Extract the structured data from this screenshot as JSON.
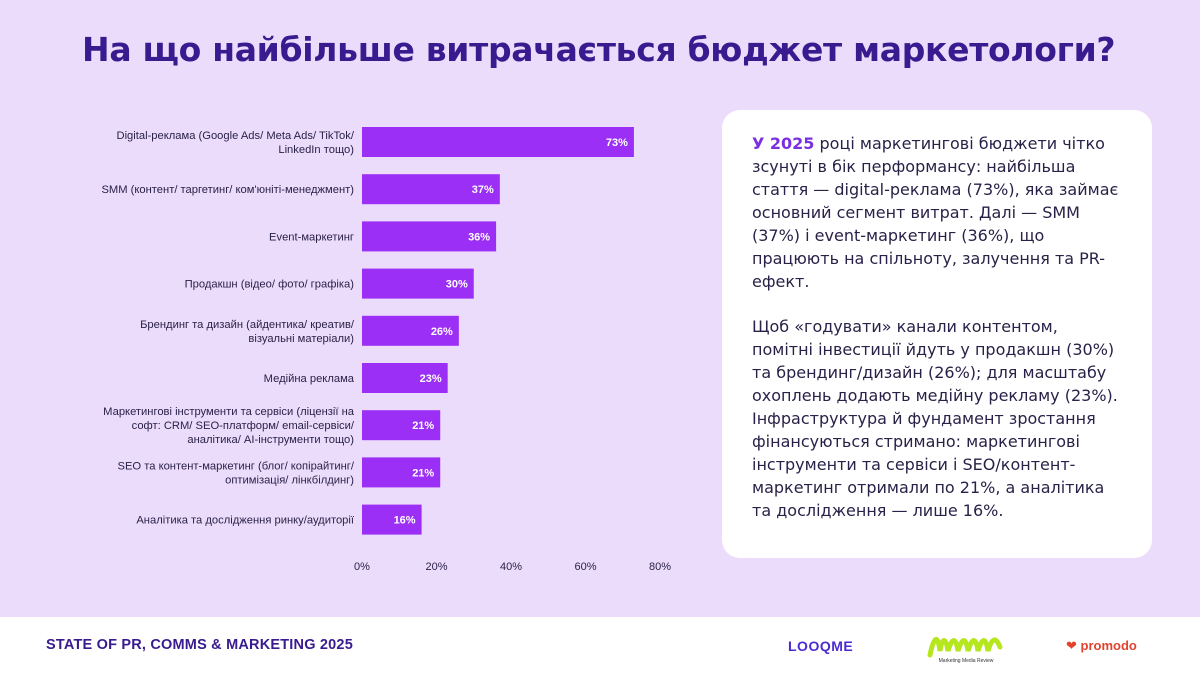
{
  "header": {
    "title": "На що найбільше витрачається бюджет маркетологи?"
  },
  "chart_data": {
    "type": "bar",
    "orientation": "horizontal",
    "categories": [
      [
        "Digital-реклама (Google Ads/ Meta Ads/ TikTok/",
        "LinkedIn тощо)"
      ],
      [
        "SMM (контент/ таргетинг/ ком'юніті-менеджмент)"
      ],
      [
        "Event-маркетинг"
      ],
      [
        "Продакшн (відео/ фото/ графіка)"
      ],
      [
        "Брендинг та дизайн (айдентика/ креатив/",
        "візуальні матеріали)"
      ],
      [
        "Медійна реклама"
      ],
      [
        "Маркетингові інструменти та сервіси (ліцензії на",
        "софт: CRM/ SEO-платформ/ email-сервіси/",
        "аналітика/ AI-інструменти тощо)"
      ],
      [
        "SEO та контент-маркетинг (блог/ копірайтинг/",
        "оптимізація/ лінкбілдинг)"
      ],
      [
        "Аналітика та дослідження ринку/аудиторії"
      ]
    ],
    "values": [
      73,
      37,
      36,
      30,
      26,
      23,
      21,
      21,
      16
    ],
    "value_labels": [
      "73%",
      "37%",
      "36%",
      "30%",
      "26%",
      "23%",
      "21%",
      "21%",
      "16%"
    ],
    "xlim": [
      0,
      80
    ],
    "x_ticks": [
      0,
      20,
      40,
      60,
      80
    ],
    "x_tick_labels": [
      "0%",
      "20%",
      "40%",
      "60%",
      "80%"
    ],
    "bar_color": "#9b2ff5",
    "label_color": "#ffffff",
    "grid": false,
    "legend": "none"
  },
  "card": {
    "p1_highlight": "У 2025",
    "p1_text": " році маркетингові бюджети чітко зсунуті в бік перформансу: найбільша стаття — digital-реклама (73%), яка займає основний сегмент витрат. Далі — SMM (37%) і event-маркетинг (36%), що працюють на спільноту, залучення та PR-ефект.",
    "p2_text": "Щоб «годувати» канали контентом, помітні інвестиції йдуть у продакшн (30%) та брендинг/дизайн (26%); для масштабу охоплень додають медійну рекламу (23%). Інфраструктура й фундамент зростання фінансуються стримано: маркетингові інструменти та сервіси і SEO/контент-маркетинг отримали по 21%, а аналітика та дослідження — лише 16%."
  },
  "footer": {
    "title": "STATE OF PR, COMMS & MARKETING 2025",
    "logo_looqme": "LOOQME",
    "logo_mmr": "Marketing Media Review",
    "logo_promodo": "promodo"
  },
  "colors": {
    "background": "#ecdcfb",
    "accent": "#3a1a8f",
    "bar": "#9b2ff5",
    "mmr_green": "#b6e61e",
    "promodo_red": "#e2432e"
  }
}
